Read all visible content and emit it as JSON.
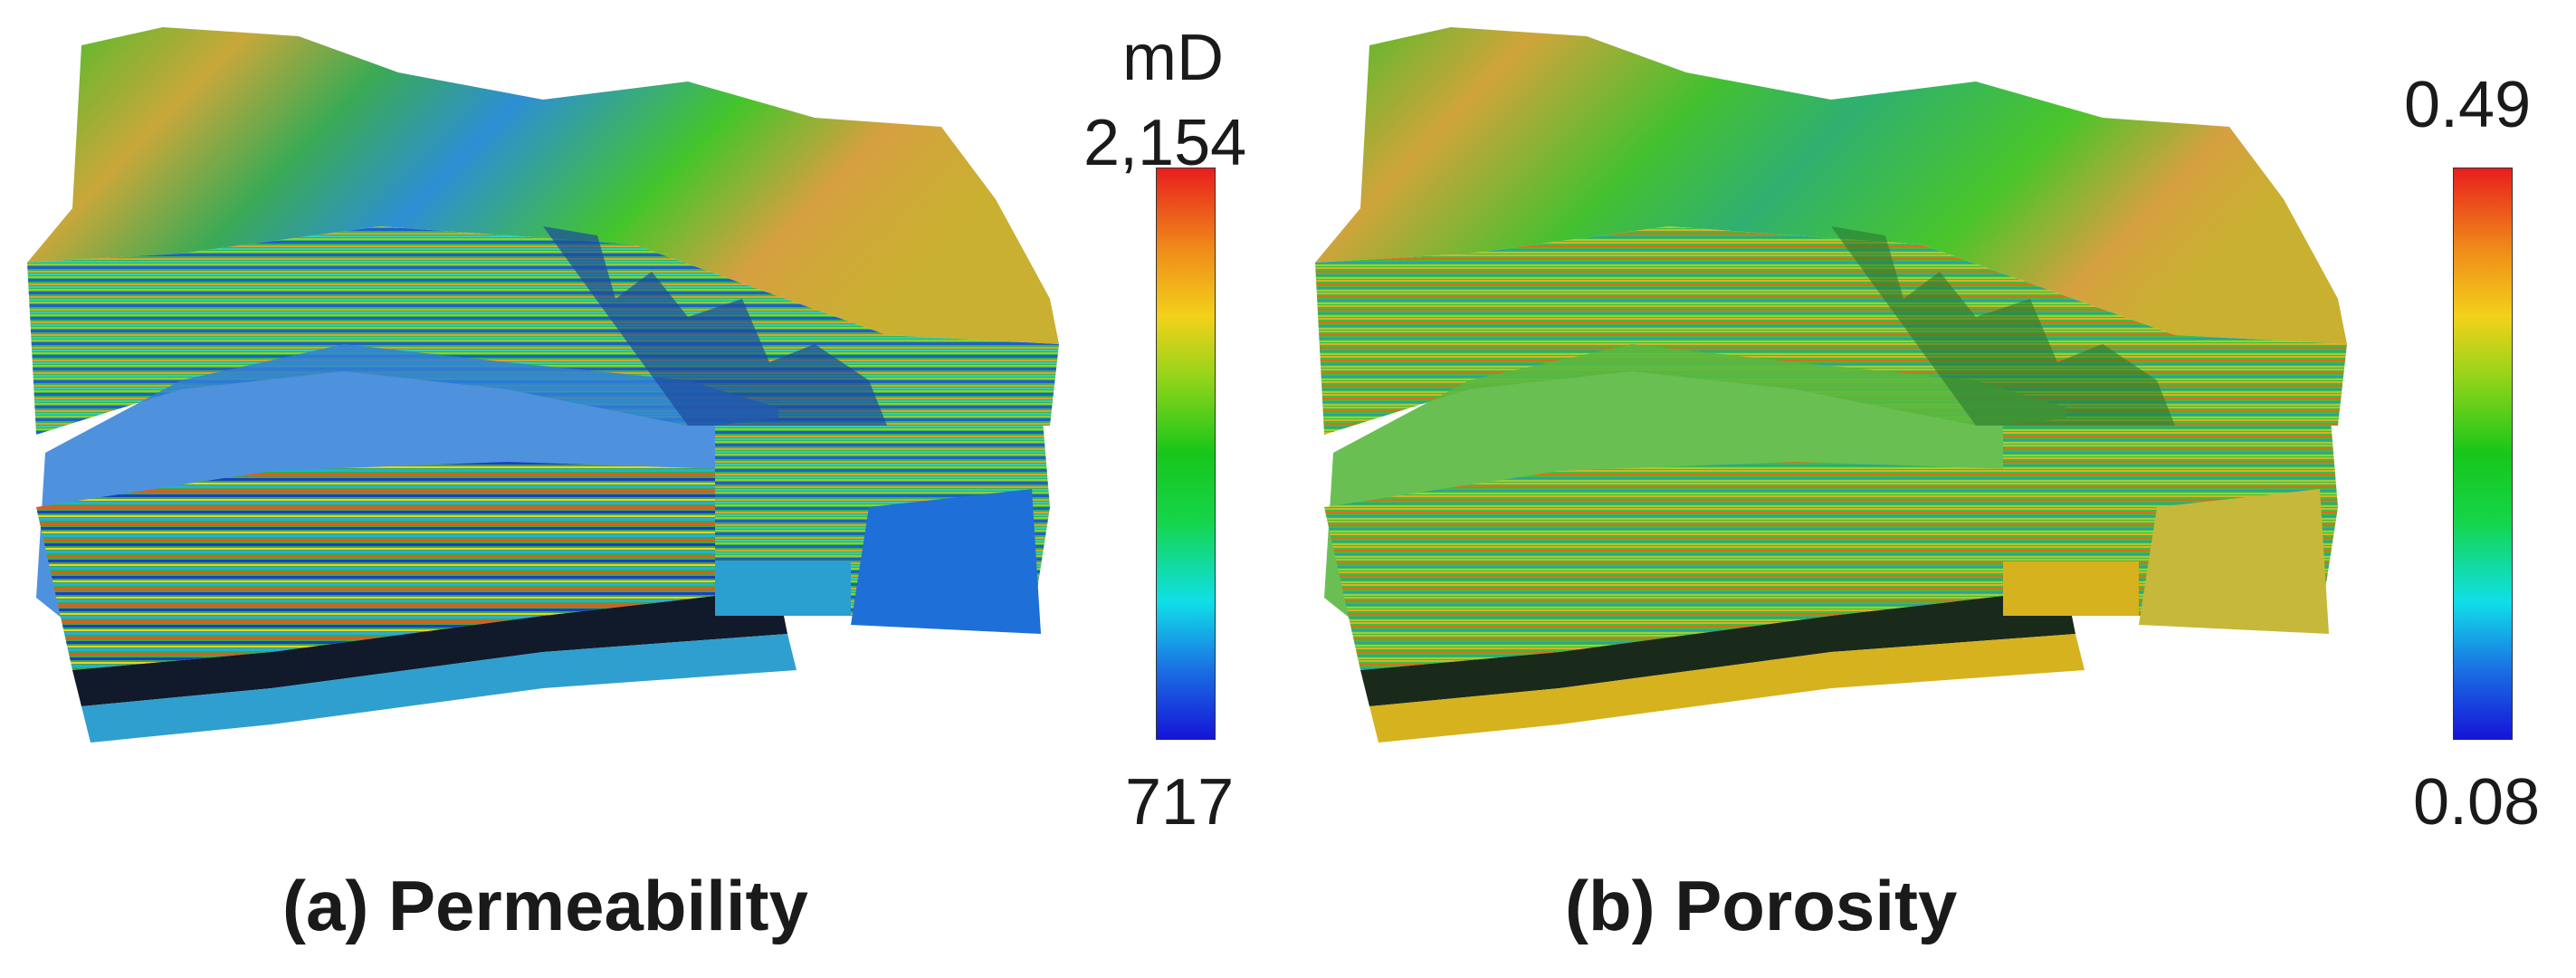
{
  "panels": [
    {
      "caption": "(a) Permeability",
      "colorbar": {
        "unit": "mD",
        "max": "2,154",
        "min": "717"
      },
      "colormap": "jet",
      "base_color": "#2f9fcf"
    },
    {
      "caption": "(b) Porosity",
      "colorbar": {
        "unit": "",
        "max": "0.49",
        "min": "0.08"
      },
      "colormap": "jet",
      "base_color": "#d6b21e"
    }
  ]
}
